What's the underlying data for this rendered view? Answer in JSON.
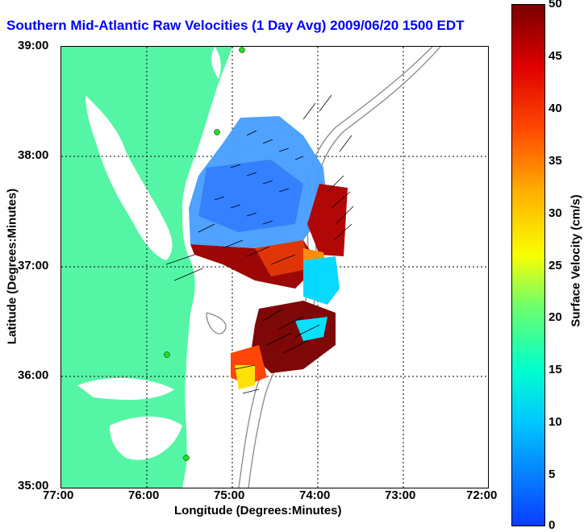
{
  "title": "Southern Mid-Atlantic Raw Velocities (1 Day Avg) 2009/06/20 1500 EDT",
  "x_axis": {
    "label": "Longitude (Degrees:Minutes)",
    "ticks": [
      "77:00",
      "76:00",
      "75:00",
      "74:00",
      "73:00",
      "72:00"
    ]
  },
  "y_axis": {
    "label": "Latitude (Degrees:Minutes)",
    "ticks": [
      "39:00",
      "38:00",
      "37:00",
      "36:00",
      "35:00"
    ]
  },
  "colorbar": {
    "label": "Surface Velocity (cm/s)",
    "ticks": [
      "50",
      "45",
      "40",
      "35",
      "30",
      "25",
      "20",
      "15",
      "10",
      "5",
      "0"
    ]
  },
  "colors": {
    "land": "#55f5a6",
    "title": "#0000ff",
    "bathymetry": "#888888",
    "station": "#22dd22"
  }
}
